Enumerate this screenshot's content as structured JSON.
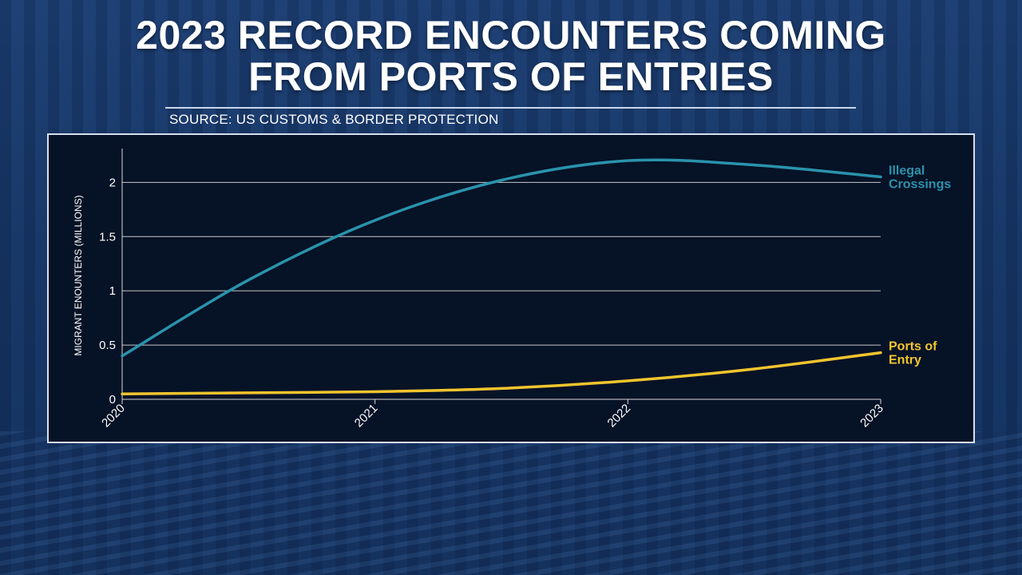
{
  "title_line1": "2023 RECORD ENCOUNTERS COMING",
  "title_line2": "FROM PORTS OF ENTRIES",
  "source": "SOURCE: US CUSTOMS & BORDER PROTECTION",
  "colors": {
    "illegal": "#2a93ac",
    "ports": "#f2c52e",
    "grid": "#c8c8c8"
  },
  "chart_data": {
    "type": "line",
    "ylabel": "MIGRANT ENOUNTERS (MILLIONS)",
    "xlabel": "",
    "x": [
      "2020",
      "2021",
      "2022",
      "2023"
    ],
    "xlim": [
      2020,
      2023
    ],
    "ylim": [
      0,
      2.4
    ],
    "yticks": [
      0,
      0.5,
      1,
      1.5,
      2
    ],
    "ytick_labels": [
      "0",
      "0.5",
      "1",
      "1.5",
      "2"
    ],
    "grid": true,
    "series": [
      {
        "name": "Illegal Crossings",
        "name_lines": [
          "Illegal",
          "Crossings"
        ],
        "x": [
          2020,
          2020.5,
          2021,
          2021.5,
          2022,
          2022.5,
          2023
        ],
        "values": [
          0.4,
          1.1,
          1.65,
          2.02,
          2.2,
          2.16,
          2.05
        ]
      },
      {
        "name": "Ports of Entry",
        "name_lines": [
          "Ports of",
          "Entry"
        ],
        "x": [
          2020,
          2020.5,
          2021,
          2021.5,
          2022,
          2022.5,
          2023
        ],
        "values": [
          0.05,
          0.06,
          0.07,
          0.1,
          0.17,
          0.28,
          0.43
        ]
      }
    ]
  }
}
